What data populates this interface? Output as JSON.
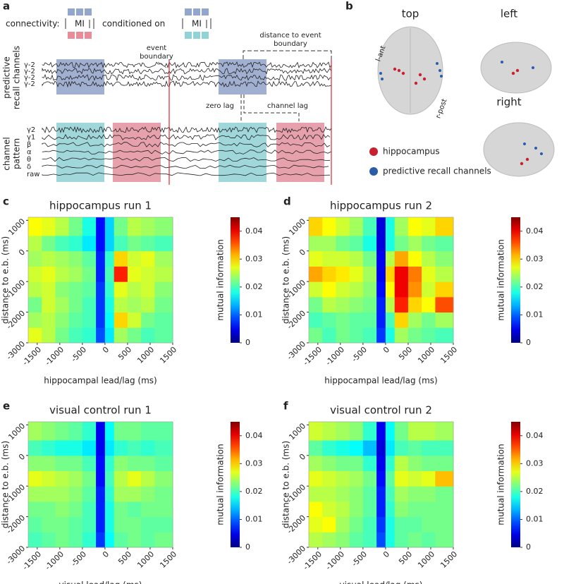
{
  "panel_a": {
    "label": "a",
    "connectivity": "connectivity:",
    "mi": [
      "MI",
      "MI"
    ],
    "conditioned_on": "conditioned on",
    "event_boundary": [
      "event",
      "boundary"
    ],
    "distance_to_event_boundary": [
      "distance to event",
      "boundary"
    ],
    "recall_channels_label": [
      "predictive",
      "recall channels"
    ],
    "recall_channel_names": [
      "γ-2",
      "γ-2",
      "γ-2",
      "γ-2"
    ],
    "zero_lag": "zero lag",
    "channel_lag": "channel lag",
    "pattern_label": [
      "channel",
      "pattern"
    ],
    "pattern_channel_names": [
      "γ2",
      "γ1",
      "β",
      "α",
      "θ",
      "δ",
      "raw"
    ]
  },
  "panel_b": {
    "label": "b",
    "views": [
      "top",
      "left",
      "right"
    ],
    "l_ant": "l-ant",
    "r_post": "r-post",
    "legend": [
      {
        "name": "hippocampus",
        "color": "#c8202e"
      },
      {
        "name": "predictive recall channels",
        "color": "#2a5da8"
      }
    ]
  },
  "chart_data": [
    {
      "type": "heatmap",
      "label": "c",
      "title": "hippocampus run 1",
      "x_label": "hippocampal lead/lag (ms)",
      "y_label": "distance to e.b. (ms)",
      "colorbar_label": "mutual information",
      "colormap": "jet",
      "xlim": [
        -1700,
        1500
      ],
      "ylim": [
        -3000,
        1100
      ],
      "xticks": [
        -1500,
        -1000,
        -500,
        0,
        500,
        1000,
        1500
      ],
      "yticks": [
        -3000,
        -2000,
        -1000,
        0,
        1000
      ],
      "zlim": [
        0,
        0.045
      ],
      "zticks": [
        0,
        0.01,
        0.02,
        0.03,
        0.04
      ],
      "xbins": [
        -1700,
        -1400,
        -1100,
        -800,
        -500,
        -200,
        0,
        200,
        500,
        800,
        1100,
        1500
      ],
      "ybins": [
        -3000,
        -2500,
        -2000,
        -1500,
        -1000,
        -500,
        0,
        500,
        1100
      ],
      "values": [
        [
          0.027,
          0.025,
          0.022,
          0.02,
          0.019,
          0.009,
          0.016,
          0.024,
          0.022,
          0.02,
          0.021
        ],
        [
          0.024,
          0.025,
          0.023,
          0.021,
          0.02,
          0.008,
          0.017,
          0.03,
          0.026,
          0.022,
          0.021
        ],
        [
          0.022,
          0.026,
          0.024,
          0.022,
          0.02,
          0.008,
          0.018,
          0.025,
          0.024,
          0.025,
          0.022
        ],
        [
          0.025,
          0.026,
          0.023,
          0.022,
          0.021,
          0.008,
          0.019,
          0.027,
          0.025,
          0.026,
          0.023
        ],
        [
          0.026,
          0.027,
          0.025,
          0.024,
          0.022,
          0.007,
          0.02,
          0.038,
          0.027,
          0.026,
          0.025
        ],
        [
          0.024,
          0.025,
          0.024,
          0.023,
          0.021,
          0.007,
          0.019,
          0.03,
          0.026,
          0.027,
          0.024
        ],
        [
          0.025,
          0.022,
          0.02,
          0.019,
          0.016,
          0.006,
          0.015,
          0.02,
          0.022,
          0.021,
          0.02
        ],
        [
          0.028,
          0.027,
          0.025,
          0.022,
          0.018,
          0.006,
          0.015,
          0.022,
          0.025,
          0.024,
          0.023
        ]
      ]
    },
    {
      "type": "heatmap",
      "label": "d",
      "title": "hippocampus run 2",
      "x_label": "hippocampal lead/lag (ms)",
      "y_label": "distance to e.b. (ms)",
      "colorbar_label": "mutual information",
      "colormap": "jet",
      "xlim": [
        -1700,
        1500
      ],
      "ylim": [
        -3000,
        1100
      ],
      "xticks": [
        -1500,
        -1000,
        -500,
        0,
        500,
        1000,
        1500
      ],
      "yticks": [
        -3000,
        -2000,
        -1000,
        0,
        1000
      ],
      "zlim": [
        0,
        0.045
      ],
      "zticks": [
        0,
        0.01,
        0.02,
        0.03,
        0.04
      ],
      "xbins": [
        -1700,
        -1400,
        -1100,
        -800,
        -500,
        -200,
        0,
        200,
        500,
        800,
        1100,
        1500
      ],
      "ybins": [
        -3000,
        -2500,
        -2000,
        -1500,
        -1000,
        -500,
        0,
        500,
        1100
      ],
      "values": [
        [
          0.022,
          0.02,
          0.022,
          0.021,
          0.02,
          0.008,
          0.018,
          0.024,
          0.022,
          0.021,
          0.02
        ],
        [
          0.02,
          0.021,
          0.022,
          0.021,
          0.021,
          0.007,
          0.02,
          0.03,
          0.024,
          0.022,
          0.024
        ],
        [
          0.022,
          0.025,
          0.024,
          0.023,
          0.022,
          0.007,
          0.025,
          0.038,
          0.03,
          0.028,
          0.036
        ],
        [
          0.026,
          0.028,
          0.026,
          0.025,
          0.023,
          0.006,
          0.028,
          0.04,
          0.033,
          0.026,
          0.03
        ],
        [
          0.032,
          0.03,
          0.029,
          0.027,
          0.024,
          0.005,
          0.03,
          0.04,
          0.034,
          0.027,
          0.025
        ],
        [
          0.027,
          0.026,
          0.026,
          0.025,
          0.022,
          0.005,
          0.025,
          0.032,
          0.028,
          0.025,
          0.023
        ],
        [
          0.024,
          0.024,
          0.022,
          0.021,
          0.018,
          0.004,
          0.018,
          0.022,
          0.024,
          0.022,
          0.021
        ],
        [
          0.03,
          0.028,
          0.026,
          0.024,
          0.02,
          0.004,
          0.018,
          0.024,
          0.028,
          0.027,
          0.03
        ]
      ]
    },
    {
      "type": "heatmap",
      "label": "e",
      "title": "visual control run 1",
      "x_label": "visual lead/lag (ms)",
      "y_label": "distance to e.b. (ms)",
      "colorbar_label": "mutual information",
      "colormap": "jet",
      "xlim": [
        -1700,
        1500
      ],
      "ylim": [
        -3000,
        1100
      ],
      "xticks": [
        -1500,
        -1000,
        -500,
        0,
        500,
        1000,
        1500
      ],
      "yticks": [
        -3000,
        -2000,
        -1000,
        0,
        1000
      ],
      "zlim": [
        0,
        0.045
      ],
      "zticks": [
        0,
        0.01,
        0.02,
        0.03,
        0.04
      ],
      "xbins": [
        -1700,
        -1400,
        -1100,
        -800,
        -500,
        -200,
        0,
        200,
        500,
        800,
        1100,
        1500
      ],
      "ybins": [
        -3000,
        -2500,
        -2000,
        -1500,
        -1000,
        -500,
        0,
        500,
        1100
      ],
      "values": [
        [
          0.02,
          0.021,
          0.022,
          0.021,
          0.019,
          0.008,
          0.017,
          0.021,
          0.022,
          0.021,
          0.022
        ],
        [
          0.021,
          0.022,
          0.022,
          0.021,
          0.02,
          0.007,
          0.018,
          0.022,
          0.022,
          0.021,
          0.021
        ],
        [
          0.022,
          0.022,
          0.023,
          0.022,
          0.02,
          0.007,
          0.018,
          0.022,
          0.021,
          0.022,
          0.022
        ],
        [
          0.024,
          0.024,
          0.024,
          0.023,
          0.021,
          0.007,
          0.019,
          0.024,
          0.024,
          0.023,
          0.022
        ],
        [
          0.027,
          0.026,
          0.025,
          0.024,
          0.022,
          0.006,
          0.02,
          0.025,
          0.027,
          0.025,
          0.023
        ],
        [
          0.023,
          0.023,
          0.022,
          0.022,
          0.02,
          0.006,
          0.019,
          0.023,
          0.022,
          0.022,
          0.021
        ],
        [
          0.02,
          0.019,
          0.018,
          0.018,
          0.016,
          0.005,
          0.016,
          0.019,
          0.02,
          0.019,
          0.02
        ],
        [
          0.024,
          0.023,
          0.022,
          0.021,
          0.019,
          0.005,
          0.017,
          0.022,
          0.022,
          0.021,
          0.021
        ]
      ]
    },
    {
      "type": "heatmap",
      "label": "f",
      "title": "visual control run 2",
      "x_label": "visual lead/lag (ms)",
      "y_label": "distance to e.b. (ms)",
      "colorbar_label": "mutual information",
      "colormap": "jet",
      "xlim": [
        -1700,
        1500
      ],
      "ylim": [
        -3000,
        1100
      ],
      "xticks": [
        -1500,
        -1000,
        -500,
        0,
        500,
        1000,
        1500
      ],
      "yticks": [
        -3000,
        -2000,
        -1000,
        0,
        1000
      ],
      "zlim": [
        0,
        0.045
      ],
      "zticks": [
        0,
        0.01,
        0.02,
        0.03,
        0.04
      ],
      "xbins": [
        -1700,
        -1400,
        -1100,
        -800,
        -500,
        -200,
        0,
        200,
        500,
        800,
        1100,
        1500
      ],
      "ybins": [
        -3000,
        -2500,
        -2000,
        -1500,
        -1000,
        -500,
        0,
        500,
        1100
      ],
      "values": [
        [
          0.025,
          0.024,
          0.023,
          0.021,
          0.02,
          0.009,
          0.018,
          0.021,
          0.022,
          0.021,
          0.022
        ],
        [
          0.027,
          0.028,
          0.024,
          0.022,
          0.02,
          0.008,
          0.018,
          0.021,
          0.021,
          0.022,
          0.022
        ],
        [
          0.028,
          0.026,
          0.025,
          0.023,
          0.021,
          0.007,
          0.019,
          0.023,
          0.022,
          0.022,
          0.022
        ],
        [
          0.025,
          0.025,
          0.024,
          0.023,
          0.021,
          0.007,
          0.02,
          0.024,
          0.023,
          0.023,
          0.022
        ],
        [
          0.027,
          0.026,
          0.025,
          0.024,
          0.022,
          0.006,
          0.021,
          0.027,
          0.026,
          0.027,
          0.031
        ],
        [
          0.024,
          0.023,
          0.022,
          0.022,
          0.019,
          0.005,
          0.019,
          0.025,
          0.023,
          0.022,
          0.022
        ],
        [
          0.021,
          0.019,
          0.018,
          0.017,
          0.014,
          0.004,
          0.016,
          0.02,
          0.021,
          0.02,
          0.02
        ],
        [
          0.026,
          0.025,
          0.024,
          0.023,
          0.019,
          0.005,
          0.017,
          0.022,
          0.025,
          0.025,
          0.024
        ]
      ]
    }
  ]
}
